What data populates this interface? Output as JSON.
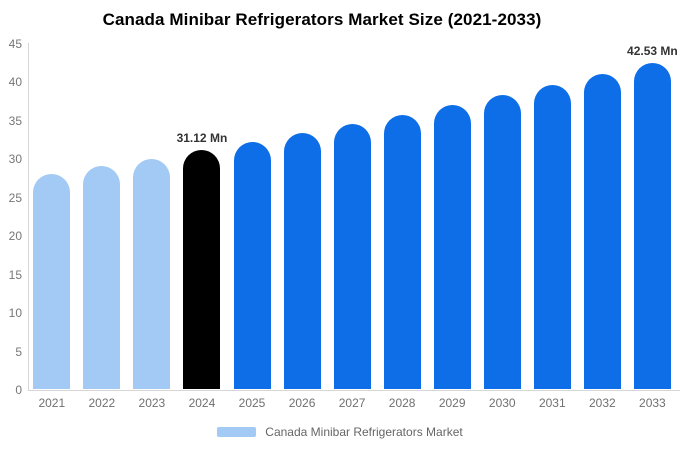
{
  "title": "Canada Minibar Refrigerators Market Size (2021-2033)",
  "legend": {
    "label": "Canada Minibar Refrigerators Market",
    "swatch_color": "#a3c9f5"
  },
  "chart_data": {
    "type": "bar",
    "title": "Canada Minibar Refrigerators Market Size (2021-2033)",
    "xlabel": "",
    "ylabel": "",
    "unit": "Mn",
    "categories": [
      "2021",
      "2022",
      "2023",
      "2024",
      "2025",
      "2026",
      "2027",
      "2028",
      "2029",
      "2030",
      "2031",
      "2032",
      "2033"
    ],
    "values": [
      28.04,
      29.03,
      30.05,
      31.12,
      32.22,
      33.36,
      34.53,
      35.75,
      37.01,
      38.32,
      39.67,
      41.07,
      42.53
    ],
    "bar_colors": [
      "#a3c9f5",
      "#a3c9f5",
      "#a3c9f5",
      "#000000",
      "#0d6ee8",
      "#0d6ee8",
      "#0d6ee8",
      "#0d6ee8",
      "#0d6ee8",
      "#0d6ee8",
      "#0d6ee8",
      "#0d6ee8",
      "#0d6ee8"
    ],
    "ylim": [
      0,
      45
    ],
    "yticks": [
      0,
      5,
      10,
      15,
      20,
      25,
      30,
      35,
      40,
      45
    ],
    "grid": false,
    "legend_position": "bottom",
    "legend_entries": [
      "Canada Minibar Refrigerators Market"
    ],
    "annotations": [
      {
        "category": "2024",
        "text": "31.12 Mn"
      },
      {
        "category": "2033",
        "text": "42.53 Mn"
      }
    ]
  }
}
